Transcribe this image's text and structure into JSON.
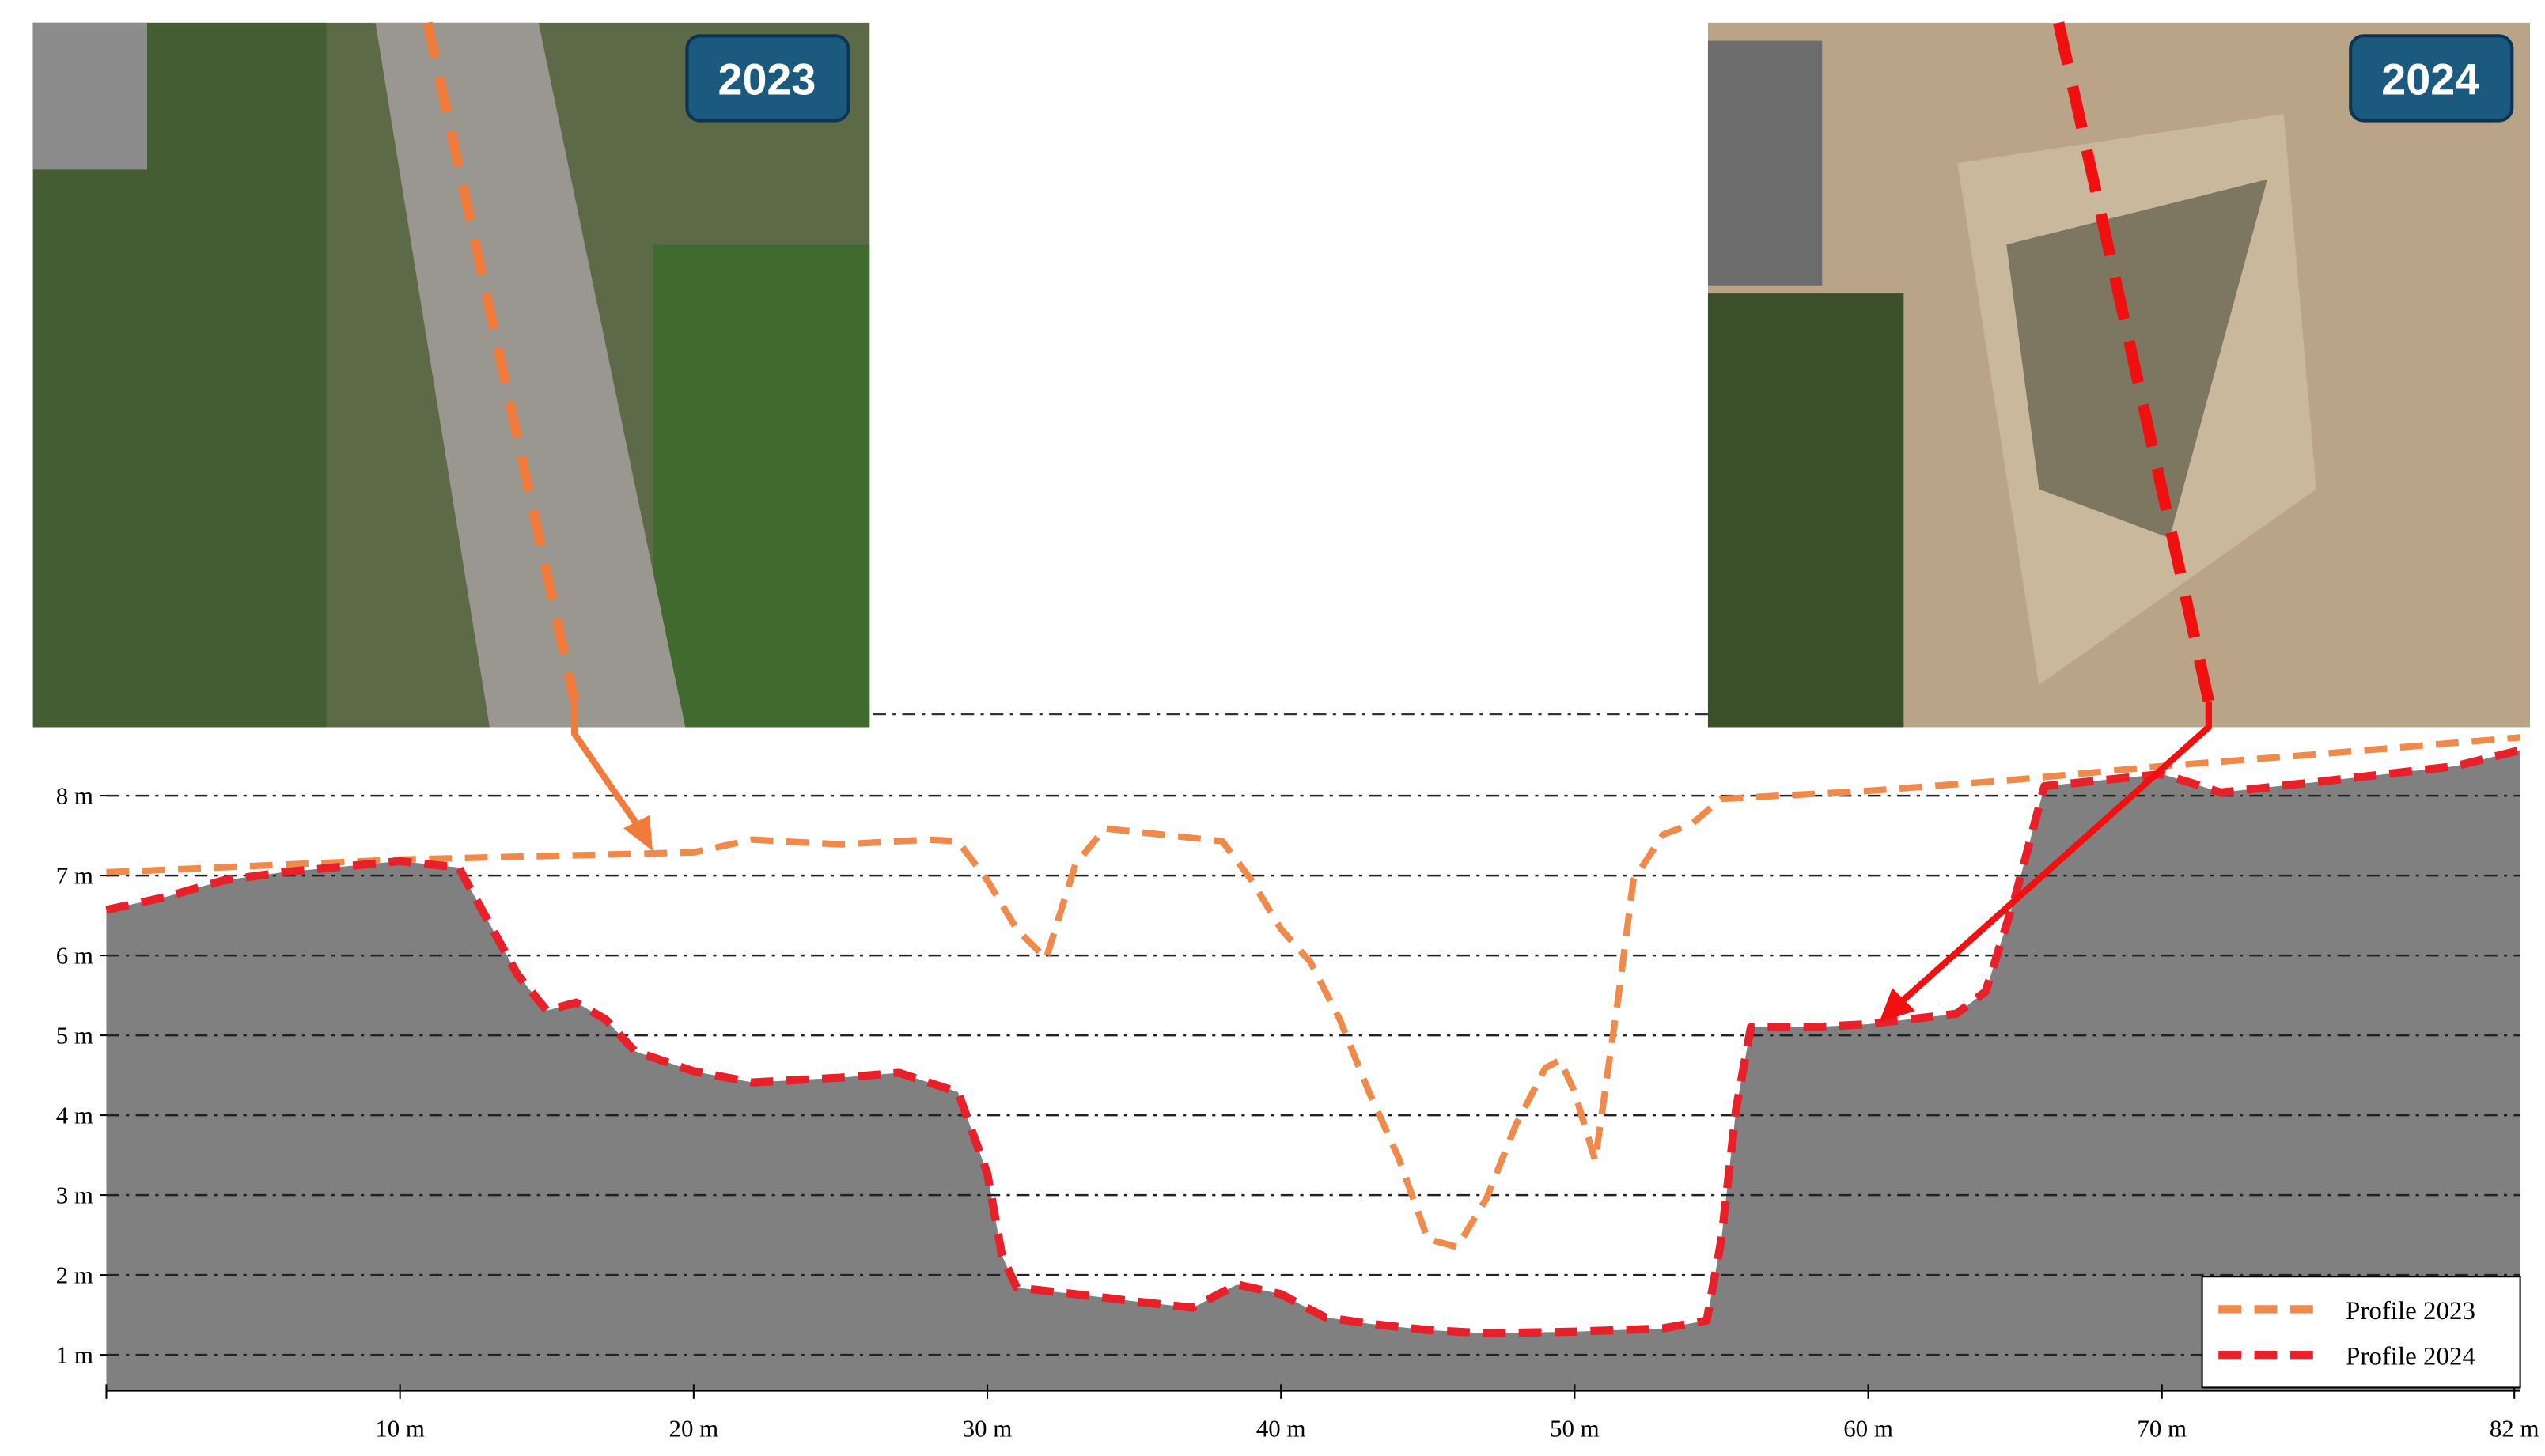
{
  "photos": [
    {
      "label": "2023"
    },
    {
      "label": "2024"
    }
  ],
  "chart_data": {
    "type": "line",
    "xlim": [
      0,
      82.2
    ],
    "ylim": [
      0.55,
      8.98
    ],
    "xticks": [
      {
        "value": 10,
        "label": "10 m"
      },
      {
        "value": 20,
        "label": "20 m"
      },
      {
        "value": 30,
        "label": "30 m"
      },
      {
        "value": 40,
        "label": "40 m"
      },
      {
        "value": 50,
        "label": "50 m"
      },
      {
        "value": 60,
        "label": "60 m"
      },
      {
        "value": 70,
        "label": "70 m"
      },
      {
        "value": 82,
        "label": "82 m"
      }
    ],
    "yticks": [
      {
        "value": 1,
        "label": "1 m"
      },
      {
        "value": 2,
        "label": "2 m"
      },
      {
        "value": 3,
        "label": "3 m"
      },
      {
        "value": 4,
        "label": "4 m"
      },
      {
        "value": 5,
        "label": "5 m"
      },
      {
        "value": 6,
        "label": "6 m"
      },
      {
        "value": 7,
        "label": "7 m"
      },
      {
        "value": 8,
        "label": "8 m"
      }
    ],
    "grid": true,
    "legend": "lower right",
    "series": [
      {
        "name": "Profile 2023",
        "color": "#f08a4b",
        "x": [
          0,
          10,
          20,
          22,
          25,
          28,
          29,
          30,
          31,
          32,
          33,
          34,
          35,
          38,
          39,
          40,
          41,
          42,
          43,
          44,
          45,
          46,
          47,
          48,
          49,
          49.5,
          50,
          50.7,
          51.5,
          52,
          53,
          54,
          55,
          60,
          65,
          70,
          75,
          82.2
        ],
        "values": [
          7.04,
          7.2,
          7.29,
          7.45,
          7.39,
          7.45,
          7.43,
          6.94,
          6.33,
          5.96,
          7.14,
          7.59,
          7.55,
          7.43,
          6.94,
          6.33,
          5.92,
          5.2,
          4.29,
          3.47,
          2.45,
          2.35,
          2.96,
          3.88,
          4.59,
          4.69,
          4.29,
          3.43,
          5.51,
          6.94,
          7.51,
          7.65,
          7.96,
          8.06,
          8.2,
          8.37,
          8.51,
          8.73
        ]
      },
      {
        "name": "Profile 2024",
        "color": "#e8202a",
        "fill": "#808080",
        "x": [
          0,
          2,
          4,
          6,
          10,
          12,
          13,
          14,
          15,
          16,
          17,
          18,
          20,
          22,
          25,
          27,
          29,
          30,
          30.5,
          31,
          33,
          35,
          37,
          38.5,
          40,
          41.5,
          43,
          45,
          47,
          50,
          53,
          54.5,
          55,
          55.5,
          56,
          58,
          60,
          63,
          64,
          65,
          66,
          70,
          71,
          72,
          75,
          80,
          82.2
        ],
        "values": [
          6.57,
          6.73,
          6.94,
          7.04,
          7.18,
          7.1,
          6.43,
          5.76,
          5.31,
          5.41,
          5.2,
          4.8,
          4.55,
          4.41,
          4.47,
          4.53,
          4.29,
          3.27,
          2.24,
          1.84,
          1.76,
          1.67,
          1.59,
          1.88,
          1.76,
          1.47,
          1.39,
          1.31,
          1.27,
          1.29,
          1.33,
          1.43,
          2.45,
          4.08,
          5.1,
          5.1,
          5.14,
          5.27,
          5.55,
          6.73,
          8.12,
          8.27,
          8.16,
          8.04,
          8.16,
          8.37,
          8.57
        ]
      }
    ]
  }
}
